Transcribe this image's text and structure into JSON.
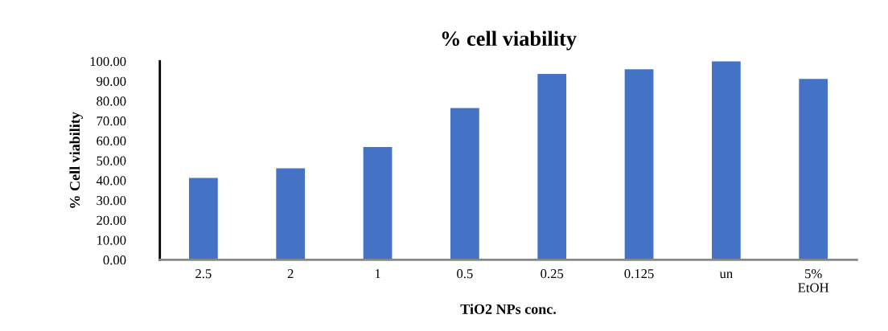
{
  "chart_data": {
    "type": "bar",
    "title": "% cell viability",
    "xlabel": "TiO2 NPs conc.",
    "ylabel": "% Cell viability",
    "categories": [
      "2.5",
      "2",
      "1",
      "0.5",
      "0.25",
      "0.125",
      "un",
      "5%\nEtOH"
    ],
    "values": [
      41.2,
      46.1,
      56.8,
      76.4,
      93.6,
      95.9,
      100.0,
      91.1
    ],
    "color": "#4472c4",
    "ylim": [
      0,
      100
    ],
    "yticks": [
      {
        "value": 0,
        "label": "0.00"
      },
      {
        "value": 10,
        "label": "10.00"
      },
      {
        "value": 20,
        "label": "20.00"
      },
      {
        "value": 30,
        "label": "30.00"
      },
      {
        "value": 40,
        "label": "40.00"
      },
      {
        "value": 50,
        "label": "50.00"
      },
      {
        "value": 60,
        "label": "60.00"
      },
      {
        "value": 70,
        "label": "70.00"
      },
      {
        "value": 80,
        "label": "80.00"
      },
      {
        "value": 90,
        "label": "90.00"
      },
      {
        "value": 100,
        "label": "100.00"
      }
    ],
    "grid": false,
    "legend": false
  }
}
